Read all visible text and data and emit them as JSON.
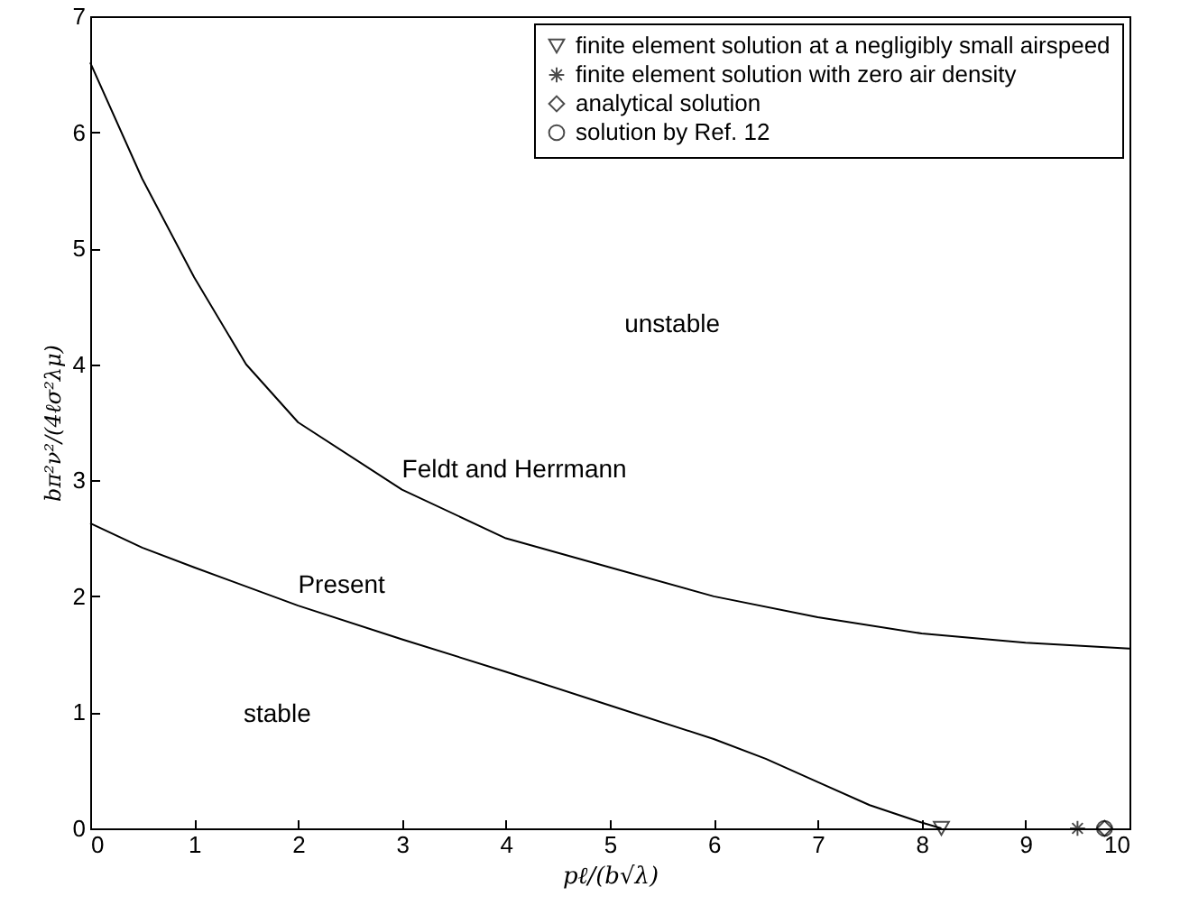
{
  "chart_data": {
    "type": "line",
    "xlabel": "pℓ/(b√λ)",
    "ylabel": "bπ²ν²/(4ℓσ²λμ)",
    "xlim": [
      0,
      10
    ],
    "ylim": [
      0,
      7
    ],
    "xticks": [
      0,
      1,
      2,
      3,
      4,
      5,
      6,
      7,
      8,
      9,
      10
    ],
    "yticks": [
      0,
      1,
      2,
      3,
      4,
      5,
      6,
      7
    ],
    "grid": false,
    "legend": "top right",
    "series": [
      {
        "type": "line",
        "name": "Feldt and Herrmann",
        "color": "#000000",
        "x": [
          0,
          0.5,
          1,
          1.5,
          2,
          3,
          4,
          5,
          6,
          7,
          8,
          9,
          10
        ],
        "values": [
          6.6,
          5.6,
          4.75,
          4.0,
          3.5,
          2.92,
          2.5,
          2.25,
          2.0,
          1.82,
          1.68,
          1.6,
          1.55
        ]
      },
      {
        "type": "line",
        "name": "Present",
        "color": "#000000",
        "x": [
          0,
          0.5,
          1,
          2,
          3,
          4,
          5,
          6,
          6.5,
          7,
          7.5,
          8,
          8.19
        ],
        "values": [
          2.63,
          2.42,
          2.25,
          1.92,
          1.63,
          1.35,
          1.06,
          0.77,
          0.6,
          0.4,
          0.2,
          0.05,
          0
        ]
      },
      {
        "type": "scatter",
        "name": "finite element solution at a negligibly small airspeed",
        "color": "#000000",
        "marker": "triangle",
        "x": [
          8.19
        ],
        "values": [
          0
        ]
      },
      {
        "type": "scatter",
        "name": "finite element solution with zero air density",
        "color": "#000000",
        "marker": "cross",
        "x": [
          9.5
        ],
        "values": [
          0
        ]
      },
      {
        "type": "scatter",
        "name": "analytical solution",
        "color": "#000000",
        "marker": "diamond",
        "x": [
          9.76
        ],
        "values": [
          0
        ]
      },
      {
        "type": "scatter",
        "name": "solution by Ref. 12",
        "color": "#000000",
        "marker": "circle",
        "x": [
          9.76
        ],
        "values": [
          0
        ]
      }
    ],
    "annotations": [
      "unstable",
      "stable"
    ]
  }
}
